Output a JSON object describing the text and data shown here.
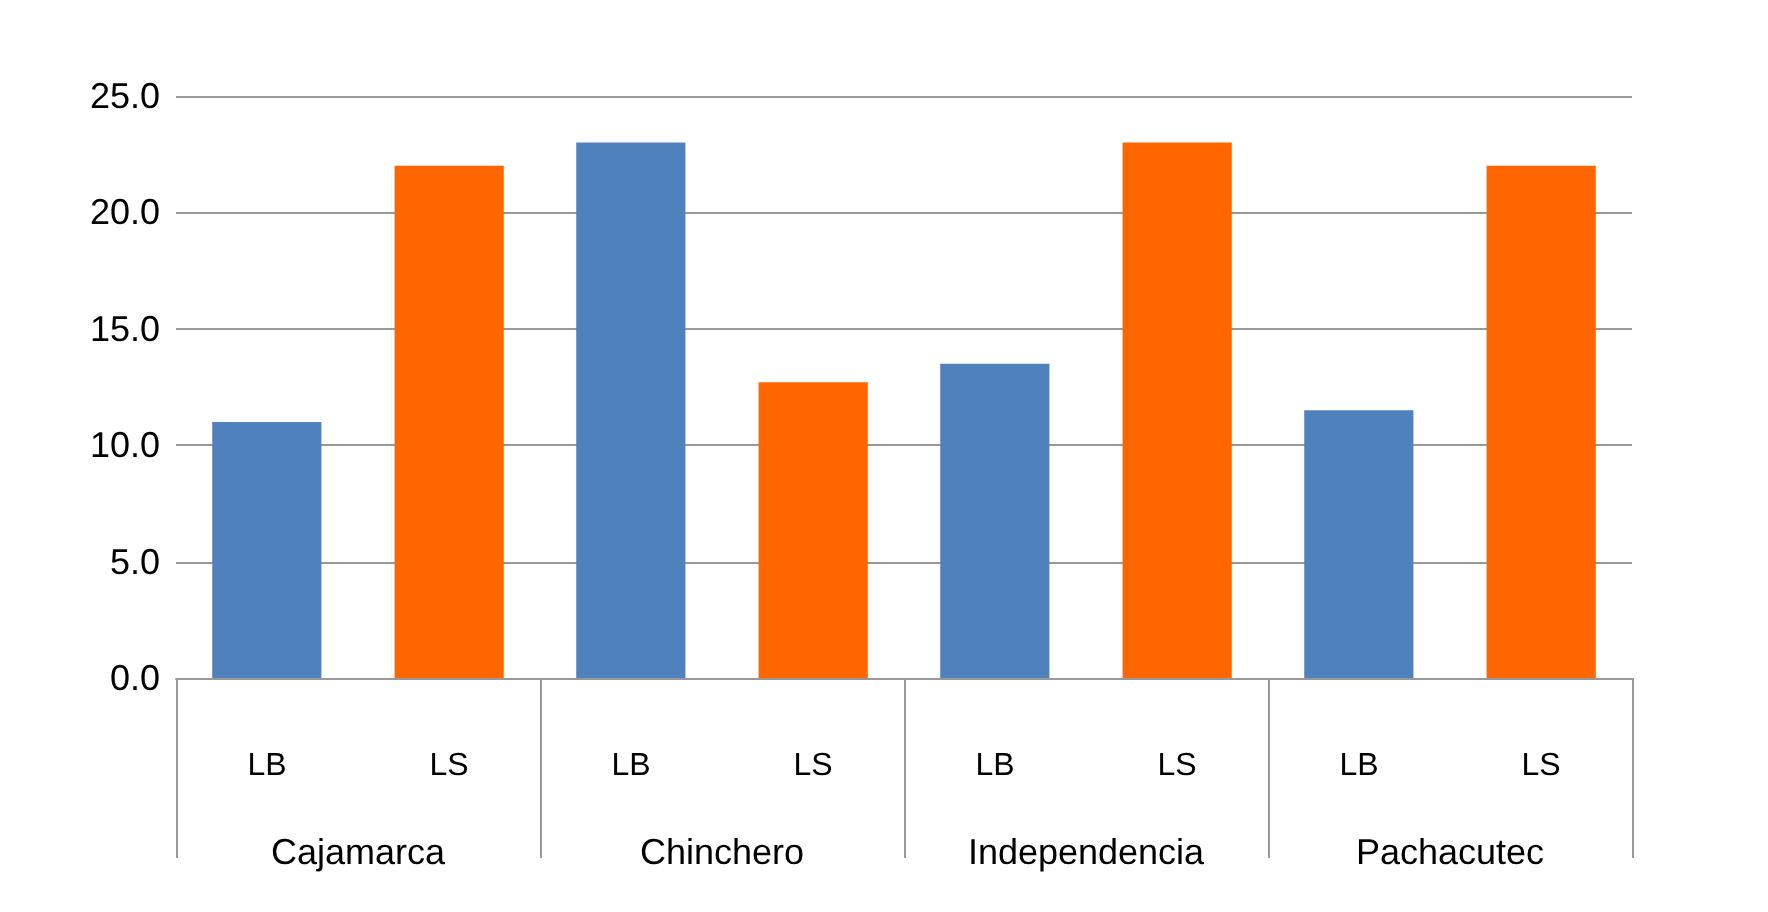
{
  "chart_data": {
    "type": "bar",
    "categories": [
      "Cajamarca",
      "Chinchero",
      "Independencia",
      "Pachacutec"
    ],
    "series": [
      {
        "name": "LB",
        "color": "#4f81bd",
        "values": [
          11.0,
          23.0,
          13.5,
          11.5
        ]
      },
      {
        "name": "LS",
        "color": "#ff6600",
        "values": [
          22.0,
          12.7,
          23.0,
          22.0
        ]
      }
    ],
    "ylim": [
      0,
      25
    ],
    "yticks": [
      {
        "value": 0,
        "label": "0.0"
      },
      {
        "value": 5,
        "label": "5.0"
      },
      {
        "value": 10,
        "label": "10.0"
      },
      {
        "value": 15,
        "label": "15.0"
      },
      {
        "value": 20,
        "label": "20.0"
      },
      {
        "value": 25,
        "label": "25.0"
      }
    ],
    "grid": "y",
    "legend": false
  }
}
